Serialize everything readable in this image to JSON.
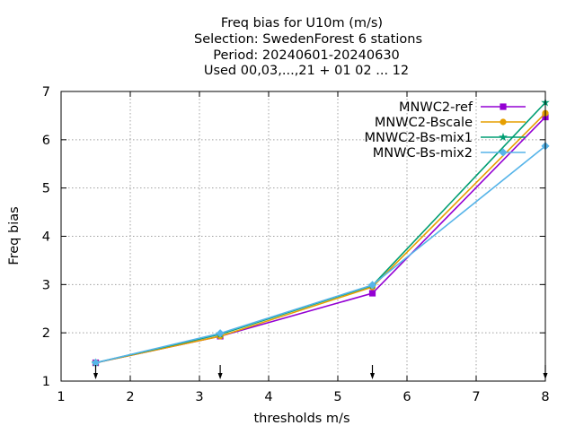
{
  "chart_data": {
    "type": "line",
    "title_lines": [
      "Freq bias  for U10m (m/s)",
      "Selection: SwedenForest       6 stations",
      "Period: 20240601-20240630",
      "Used 00,03,...,21 + 01 02 ... 12"
    ],
    "xlabel": "thresholds m/s",
    "ylabel": "Freq bias",
    "xlim": [
      1,
      8
    ],
    "ylim": [
      1,
      7
    ],
    "xticks": [
      1,
      2,
      3,
      4,
      5,
      6,
      7,
      8
    ],
    "yticks": [
      1,
      2,
      3,
      4,
      5,
      6,
      7
    ],
    "grid": true,
    "legend_position": "top-right",
    "x": [
      1.5,
      3.3,
      5.5,
      8.0
    ],
    "series": [
      {
        "name": "MNWC2-ref",
        "color": "#9400d3",
        "marker": "filled-square",
        "values": [
          1.38,
          1.93,
          2.82,
          6.47
        ]
      },
      {
        "name": "MNWC2-Bscale",
        "color": "#e69f00",
        "marker": "filled-circle",
        "values": [
          1.38,
          1.93,
          2.95,
          6.55
        ]
      },
      {
        "name": "MNWC2-Bs-mix1",
        "color": "#009e73",
        "marker": "filled-star",
        "values": [
          1.38,
          1.97,
          2.98,
          6.77
        ]
      },
      {
        "name": "MNWC-Bs-mix2",
        "color": "#56b4e9",
        "marker": "filled-diamond",
        "values": [
          1.38,
          1.99,
          2.99,
          5.87
        ]
      }
    ],
    "bottom_arrows_x": [
      1.5,
      3.3,
      5.5,
      8.0
    ]
  }
}
